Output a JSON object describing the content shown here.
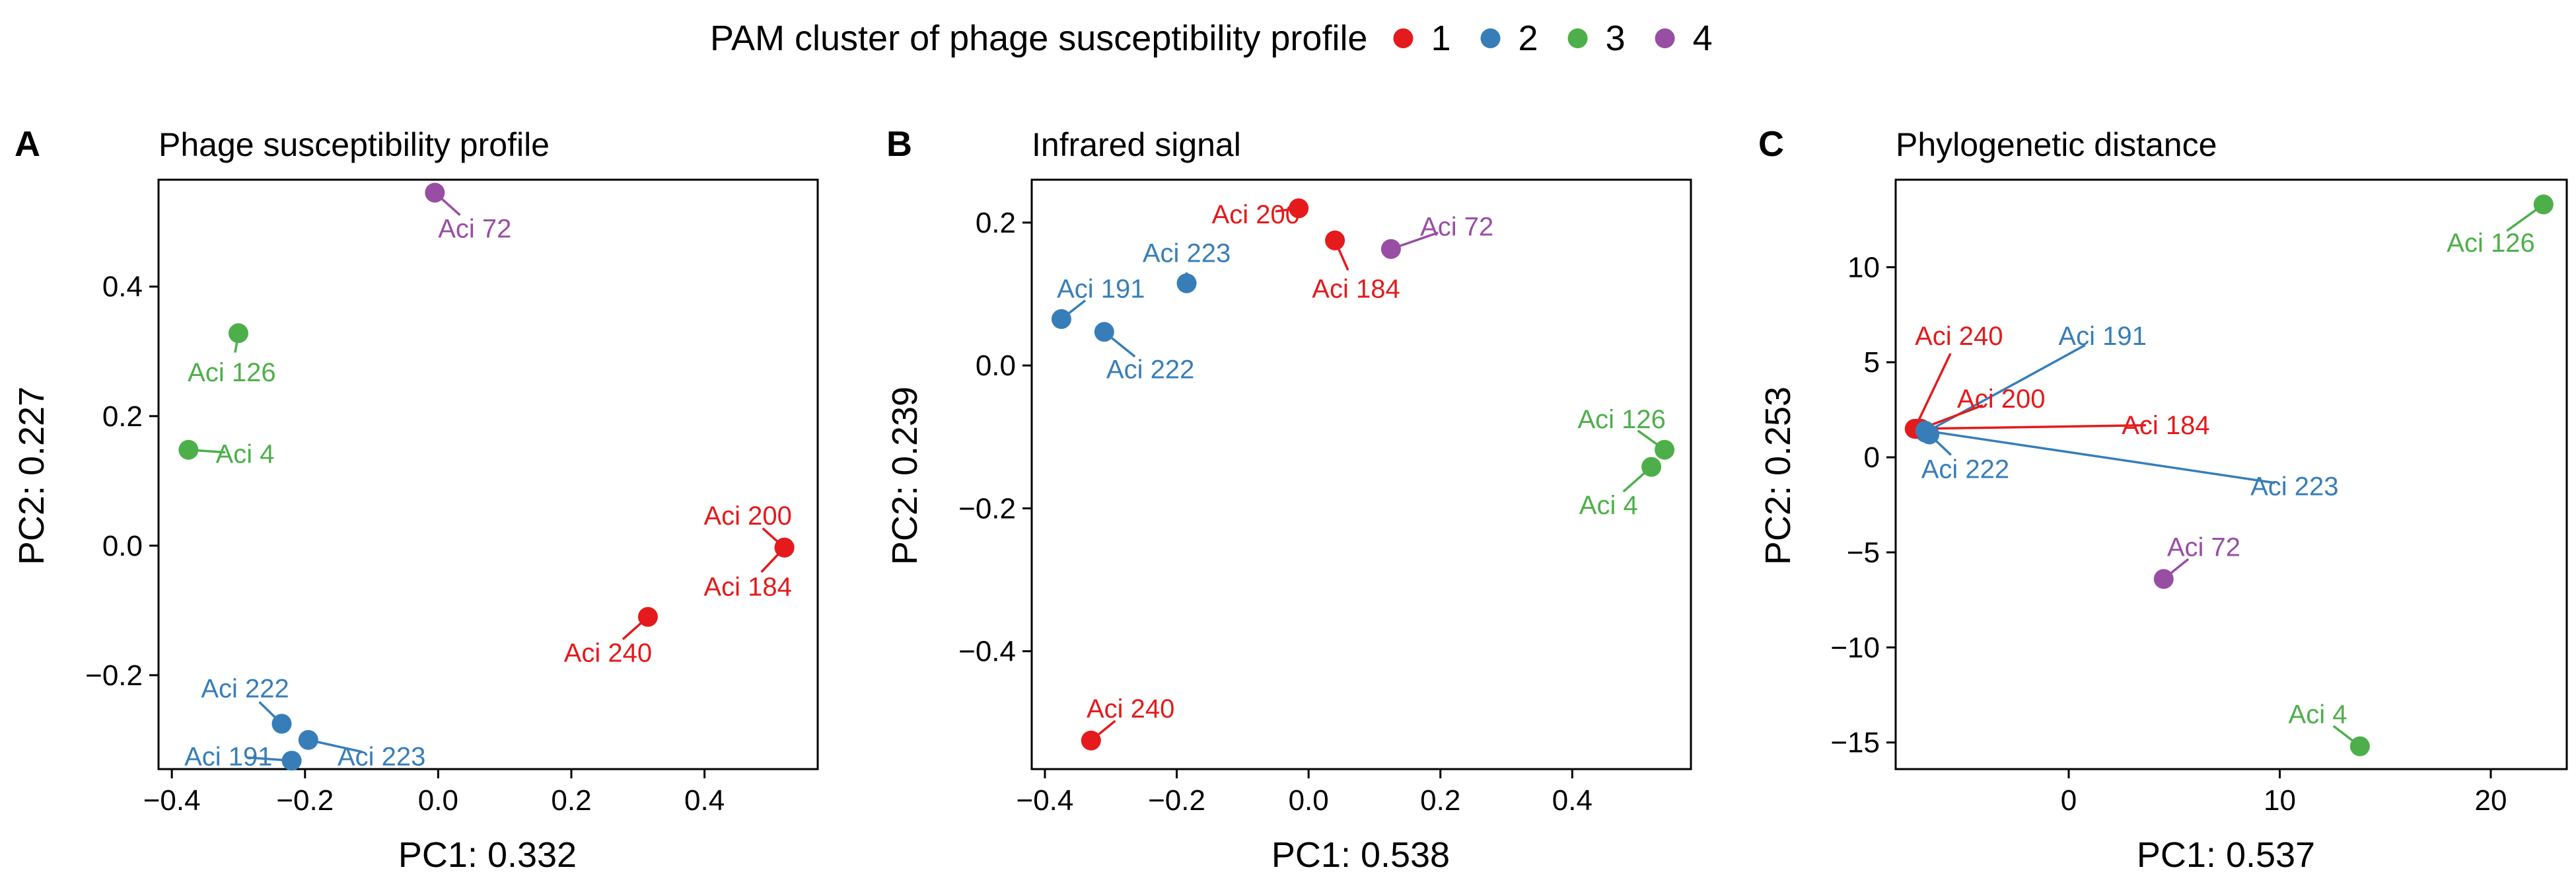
{
  "legend": {
    "title": "PAM cluster of phage susceptibility profile",
    "items": [
      {
        "label": "1",
        "color": "#E41A1C"
      },
      {
        "label": "2",
        "color": "#377EB8"
      },
      {
        "label": "3",
        "color": "#4DAF4A"
      },
      {
        "label": "4",
        "color": "#984EA3"
      }
    ]
  },
  "chart_data": [
    {
      "type": "scatter",
      "panel": "A",
      "title": "Phage susceptibility profile",
      "xlabel": "PC1: 0.332",
      "ylabel": "PC2: 0.227",
      "xlim": [
        -0.42,
        0.57
      ],
      "ylim": [
        -0.345,
        0.565
      ],
      "xticks": [
        -0.4,
        -0.2,
        0.0,
        0.2,
        0.4
      ],
      "xtick_labels": [
        "−0.4",
        "−0.2",
        "0.0",
        "0.2",
        "0.4"
      ],
      "yticks": [
        -0.2,
        0.0,
        0.2,
        0.4
      ],
      "ytick_labels": [
        "−0.2",
        "0.0",
        "0.2",
        "0.4"
      ],
      "points": [
        {
          "label": "Aci 72",
          "cluster": "4",
          "x": -0.005,
          "y": 0.545,
          "lx": 0.055,
          "ly": 0.49
        },
        {
          "label": "Aci 126",
          "cluster": "3",
          "x": -0.3,
          "y": 0.328,
          "lx": -0.31,
          "ly": 0.268
        },
        {
          "label": "Aci 4",
          "cluster": "3",
          "x": -0.375,
          "y": 0.148,
          "lx": -0.29,
          "ly": 0.142
        },
        {
          "label": "Aci 200",
          "cluster": "1",
          "x": 0.52,
          "y": -0.003,
          "lx": 0.465,
          "ly": 0.047
        },
        {
          "label": "Aci 184",
          "cluster": "1",
          "x": 0.52,
          "y": -0.003,
          "lx": 0.465,
          "ly": -0.063
        },
        {
          "label": "Aci 240",
          "cluster": "1",
          "x": 0.315,
          "y": -0.11,
          "lx": 0.255,
          "ly": -0.165
        },
        {
          "label": "Aci 222",
          "cluster": "2",
          "x": -0.235,
          "y": -0.275,
          "lx": -0.29,
          "ly": -0.22
        },
        {
          "label": "Aci 223",
          "cluster": "2",
          "x": -0.195,
          "y": -0.3,
          "lx": -0.085,
          "ly": -0.325
        },
        {
          "label": "Aci 191",
          "cluster": "2",
          "x": -0.22,
          "y": -0.332,
          "lx": -0.315,
          "ly": -0.325
        }
      ]
    },
    {
      "type": "scatter",
      "panel": "B",
      "title": "Infrared signal",
      "xlabel": "PC1: 0.538",
      "ylabel": "PC2: 0.239",
      "xlim": [
        -0.42,
        0.58
      ],
      "ylim": [
        -0.565,
        0.26
      ],
      "xticks": [
        -0.4,
        -0.2,
        0.0,
        0.2,
        0.4
      ],
      "xtick_labels": [
        "−0.4",
        "−0.2",
        "0.0",
        "0.2",
        "0.4"
      ],
      "yticks": [
        -0.4,
        -0.2,
        0.0,
        0.2
      ],
      "ytick_labels": [
        "−0.4",
        "−0.2",
        "0.0",
        "0.2"
      ],
      "points": [
        {
          "label": "Aci 200",
          "cluster": "1",
          "x": -0.015,
          "y": 0.22,
          "lx": -0.08,
          "ly": 0.212
        },
        {
          "label": "Aci 184",
          "cluster": "1",
          "x": 0.04,
          "y": 0.175,
          "lx": 0.072,
          "ly": 0.108
        },
        {
          "label": "Aci 72",
          "cluster": "4",
          "x": 0.125,
          "y": 0.163,
          "lx": 0.225,
          "ly": 0.195
        },
        {
          "label": "Aci 223",
          "cluster": "2",
          "x": -0.185,
          "y": 0.115,
          "lx": -0.185,
          "ly": 0.158
        },
        {
          "label": "Aci 191",
          "cluster": "2",
          "x": -0.375,
          "y": 0.065,
          "lx": -0.315,
          "ly": 0.108
        },
        {
          "label": "Aci 222",
          "cluster": "2",
          "x": -0.31,
          "y": 0.047,
          "lx": -0.24,
          "ly": -0.005
        },
        {
          "label": "Aci 126",
          "cluster": "3",
          "x": 0.54,
          "y": -0.118,
          "lx": 0.475,
          "ly": -0.075
        },
        {
          "label": "Aci 4",
          "cluster": "3",
          "x": 0.52,
          "y": -0.142,
          "lx": 0.455,
          "ly": -0.195
        },
        {
          "label": "Aci 240",
          "cluster": "1",
          "x": -0.33,
          "y": -0.525,
          "lx": -0.27,
          "ly": -0.48
        }
      ]
    },
    {
      "type": "scatter",
      "panel": "C",
      "title": "Phylogenetic distance",
      "xlabel": "PC1: 0.537",
      "ylabel": "PC2: 0.253",
      "xlim": [
        -8.2,
        23.6
      ],
      "ylim": [
        -16.4,
        14.6
      ],
      "xticks": [
        0,
        10,
        20
      ],
      "xtick_labels": [
        "0",
        "10",
        "20"
      ],
      "yticks": [
        -15,
        -10,
        -5,
        0,
        5,
        10
      ],
      "ytick_labels": [
        "−15",
        "−10",
        "−5",
        "0",
        "5",
        "10"
      ],
      "points": [
        {
          "label": "Aci 126",
          "cluster": "3",
          "x": 22.5,
          "y": 13.3,
          "lx": 20.0,
          "ly": 11.3
        },
        {
          "label": "Aci 240",
          "cluster": "1",
          "x": -7.3,
          "y": 1.5,
          "lx": -5.2,
          "ly": 6.4
        },
        {
          "label": "Aci 191",
          "cluster": "2",
          "x": -6.8,
          "y": 1.3,
          "lx": 1.6,
          "ly": 6.4
        },
        {
          "label": "Aci 200",
          "cluster": "1",
          "x": -7.0,
          "y": 1.5,
          "lx": -3.2,
          "ly": 3.1
        },
        {
          "label": "Aci 184",
          "cluster": "1",
          "x": -7.2,
          "y": 1.5,
          "lx": 4.6,
          "ly": 1.7
        },
        {
          "label": "Aci 222",
          "cluster": "2",
          "x": -6.6,
          "y": 1.2,
          "lx": -4.9,
          "ly": -0.6
        },
        {
          "label": "Aci 223",
          "cluster": "2",
          "x": -6.8,
          "y": 1.4,
          "lx": 10.7,
          "ly": -1.5
        },
        {
          "label": "Aci 72",
          "cluster": "4",
          "x": 4.5,
          "y": -6.4,
          "lx": 6.4,
          "ly": -4.7
        },
        {
          "label": "Aci 4",
          "cluster": "3",
          "x": 13.8,
          "y": -15.2,
          "lx": 11.8,
          "ly": -13.5
        }
      ]
    }
  ]
}
